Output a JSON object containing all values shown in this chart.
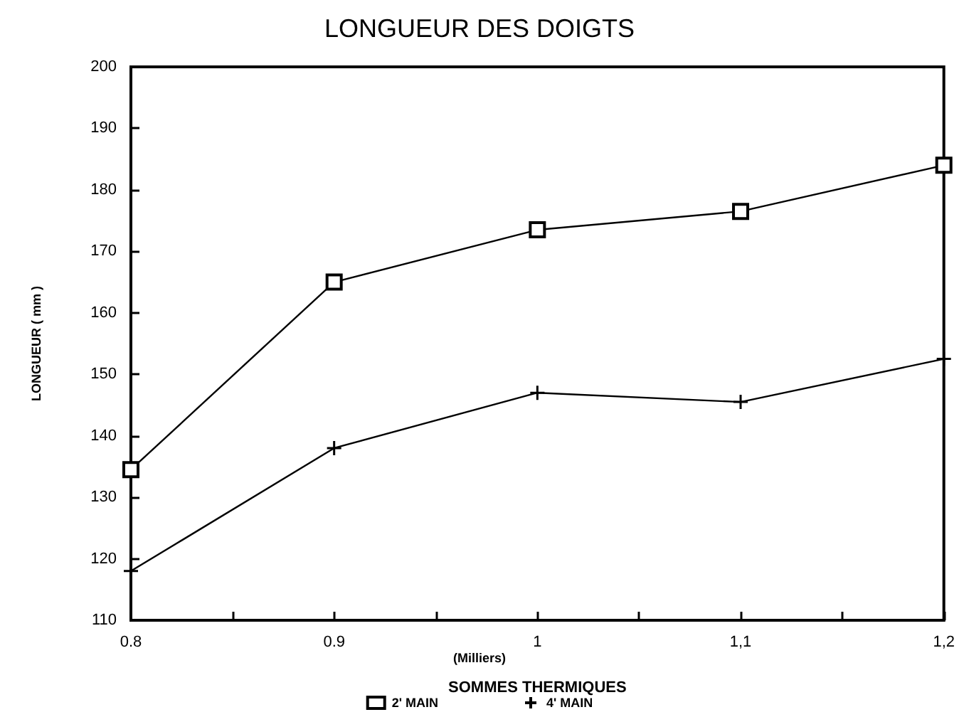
{
  "chart_data": {
    "type": "line",
    "title": "LONGUEUR DES DOIGTS",
    "xlabel": "SOMMES THERMIQUES",
    "ylabel": "LONGUEUR ( mm )",
    "annotations": [
      "(Milliers)"
    ],
    "x": [
      0.8,
      0.9,
      1,
      1.1,
      1.2
    ],
    "series": [
      {
        "name": "2' MAIN",
        "color": "#000000",
        "marker": "square",
        "values": [
          134.5,
          165,
          173.5,
          176.5,
          184
        ]
      },
      {
        "name": "4' MAIN",
        "color": "#000000",
        "marker": "cross",
        "values": [
          118,
          138,
          147,
          145.5,
          152.5
        ]
      }
    ],
    "xlim": [
      0.8,
      1.2
    ],
    "xticks": [
      {
        "value": 0.8,
        "label": "0.8"
      },
      {
        "value": 0.85,
        "label": null
      },
      {
        "value": 0.9,
        "label": "0.9"
      },
      {
        "value": 0.95,
        "label": null
      },
      {
        "value": 1,
        "label": "1"
      },
      {
        "value": 1.05,
        "label": null
      },
      {
        "value": 1.1,
        "label": "1,1"
      },
      {
        "value": 1.15,
        "label": null
      },
      {
        "value": 1.2,
        "label": "1,2"
      }
    ],
    "ylim": [
      110,
      200
    ],
    "yticks": [
      110,
      120,
      130,
      140,
      150,
      160,
      170,
      180,
      190,
      200
    ],
    "grid": false,
    "legend": "bottom",
    "line_style": "solid"
  }
}
